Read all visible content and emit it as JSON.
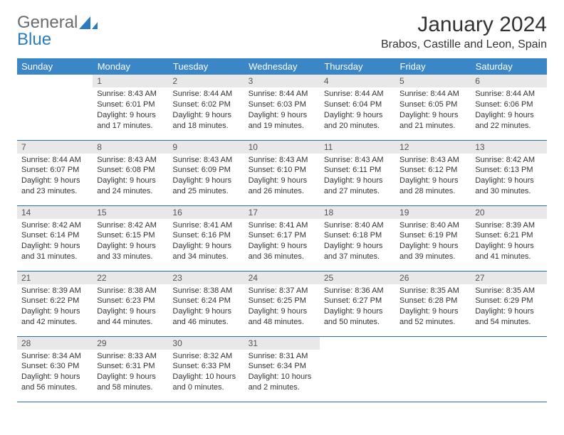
{
  "brand": {
    "word1": "General",
    "word2": "Blue"
  },
  "title": "January 2024",
  "location": "Brabos, Castille and Leon, Spain",
  "colors": {
    "header_bg": "#3b86c6",
    "header_fg": "#ffffff",
    "daynum_bg": "#e8e8e8",
    "row_border": "#2b6fa8",
    "brand_gray": "#6b6b6b",
    "brand_blue": "#2b7bbf"
  },
  "weekdays": [
    "Sunday",
    "Monday",
    "Tuesday",
    "Wednesday",
    "Thursday",
    "Friday",
    "Saturday"
  ],
  "weeks": [
    [
      null,
      {
        "n": "1",
        "sr": "Sunrise: 8:43 AM",
        "ss": "Sunset: 6:01 PM",
        "d1": "Daylight: 9 hours",
        "d2": "and 17 minutes."
      },
      {
        "n": "2",
        "sr": "Sunrise: 8:44 AM",
        "ss": "Sunset: 6:02 PM",
        "d1": "Daylight: 9 hours",
        "d2": "and 18 minutes."
      },
      {
        "n": "3",
        "sr": "Sunrise: 8:44 AM",
        "ss": "Sunset: 6:03 PM",
        "d1": "Daylight: 9 hours",
        "d2": "and 19 minutes."
      },
      {
        "n": "4",
        "sr": "Sunrise: 8:44 AM",
        "ss": "Sunset: 6:04 PM",
        "d1": "Daylight: 9 hours",
        "d2": "and 20 minutes."
      },
      {
        "n": "5",
        "sr": "Sunrise: 8:44 AM",
        "ss": "Sunset: 6:05 PM",
        "d1": "Daylight: 9 hours",
        "d2": "and 21 minutes."
      },
      {
        "n": "6",
        "sr": "Sunrise: 8:44 AM",
        "ss": "Sunset: 6:06 PM",
        "d1": "Daylight: 9 hours",
        "d2": "and 22 minutes."
      }
    ],
    [
      {
        "n": "7",
        "sr": "Sunrise: 8:44 AM",
        "ss": "Sunset: 6:07 PM",
        "d1": "Daylight: 9 hours",
        "d2": "and 23 minutes."
      },
      {
        "n": "8",
        "sr": "Sunrise: 8:43 AM",
        "ss": "Sunset: 6:08 PM",
        "d1": "Daylight: 9 hours",
        "d2": "and 24 minutes."
      },
      {
        "n": "9",
        "sr": "Sunrise: 8:43 AM",
        "ss": "Sunset: 6:09 PM",
        "d1": "Daylight: 9 hours",
        "d2": "and 25 minutes."
      },
      {
        "n": "10",
        "sr": "Sunrise: 8:43 AM",
        "ss": "Sunset: 6:10 PM",
        "d1": "Daylight: 9 hours",
        "d2": "and 26 minutes."
      },
      {
        "n": "11",
        "sr": "Sunrise: 8:43 AM",
        "ss": "Sunset: 6:11 PM",
        "d1": "Daylight: 9 hours",
        "d2": "and 27 minutes."
      },
      {
        "n": "12",
        "sr": "Sunrise: 8:43 AM",
        "ss": "Sunset: 6:12 PM",
        "d1": "Daylight: 9 hours",
        "d2": "and 28 minutes."
      },
      {
        "n": "13",
        "sr": "Sunrise: 8:42 AM",
        "ss": "Sunset: 6:13 PM",
        "d1": "Daylight: 9 hours",
        "d2": "and 30 minutes."
      }
    ],
    [
      {
        "n": "14",
        "sr": "Sunrise: 8:42 AM",
        "ss": "Sunset: 6:14 PM",
        "d1": "Daylight: 9 hours",
        "d2": "and 31 minutes."
      },
      {
        "n": "15",
        "sr": "Sunrise: 8:42 AM",
        "ss": "Sunset: 6:15 PM",
        "d1": "Daylight: 9 hours",
        "d2": "and 33 minutes."
      },
      {
        "n": "16",
        "sr": "Sunrise: 8:41 AM",
        "ss": "Sunset: 6:16 PM",
        "d1": "Daylight: 9 hours",
        "d2": "and 34 minutes."
      },
      {
        "n": "17",
        "sr": "Sunrise: 8:41 AM",
        "ss": "Sunset: 6:17 PM",
        "d1": "Daylight: 9 hours",
        "d2": "and 36 minutes."
      },
      {
        "n": "18",
        "sr": "Sunrise: 8:40 AM",
        "ss": "Sunset: 6:18 PM",
        "d1": "Daylight: 9 hours",
        "d2": "and 37 minutes."
      },
      {
        "n": "19",
        "sr": "Sunrise: 8:40 AM",
        "ss": "Sunset: 6:19 PM",
        "d1": "Daylight: 9 hours",
        "d2": "and 39 minutes."
      },
      {
        "n": "20",
        "sr": "Sunrise: 8:39 AM",
        "ss": "Sunset: 6:21 PM",
        "d1": "Daylight: 9 hours",
        "d2": "and 41 minutes."
      }
    ],
    [
      {
        "n": "21",
        "sr": "Sunrise: 8:39 AM",
        "ss": "Sunset: 6:22 PM",
        "d1": "Daylight: 9 hours",
        "d2": "and 42 minutes."
      },
      {
        "n": "22",
        "sr": "Sunrise: 8:38 AM",
        "ss": "Sunset: 6:23 PM",
        "d1": "Daylight: 9 hours",
        "d2": "and 44 minutes."
      },
      {
        "n": "23",
        "sr": "Sunrise: 8:38 AM",
        "ss": "Sunset: 6:24 PM",
        "d1": "Daylight: 9 hours",
        "d2": "and 46 minutes."
      },
      {
        "n": "24",
        "sr": "Sunrise: 8:37 AM",
        "ss": "Sunset: 6:25 PM",
        "d1": "Daylight: 9 hours",
        "d2": "and 48 minutes."
      },
      {
        "n": "25",
        "sr": "Sunrise: 8:36 AM",
        "ss": "Sunset: 6:27 PM",
        "d1": "Daylight: 9 hours",
        "d2": "and 50 minutes."
      },
      {
        "n": "26",
        "sr": "Sunrise: 8:35 AM",
        "ss": "Sunset: 6:28 PM",
        "d1": "Daylight: 9 hours",
        "d2": "and 52 minutes."
      },
      {
        "n": "27",
        "sr": "Sunrise: 8:35 AM",
        "ss": "Sunset: 6:29 PM",
        "d1": "Daylight: 9 hours",
        "d2": "and 54 minutes."
      }
    ],
    [
      {
        "n": "28",
        "sr": "Sunrise: 8:34 AM",
        "ss": "Sunset: 6:30 PM",
        "d1": "Daylight: 9 hours",
        "d2": "and 56 minutes."
      },
      {
        "n": "29",
        "sr": "Sunrise: 8:33 AM",
        "ss": "Sunset: 6:31 PM",
        "d1": "Daylight: 9 hours",
        "d2": "and 58 minutes."
      },
      {
        "n": "30",
        "sr": "Sunrise: 8:32 AM",
        "ss": "Sunset: 6:33 PM",
        "d1": "Daylight: 10 hours",
        "d2": "and 0 minutes."
      },
      {
        "n": "31",
        "sr": "Sunrise: 8:31 AM",
        "ss": "Sunset: 6:34 PM",
        "d1": "Daylight: 10 hours",
        "d2": "and 2 minutes."
      },
      null,
      null,
      null
    ]
  ]
}
